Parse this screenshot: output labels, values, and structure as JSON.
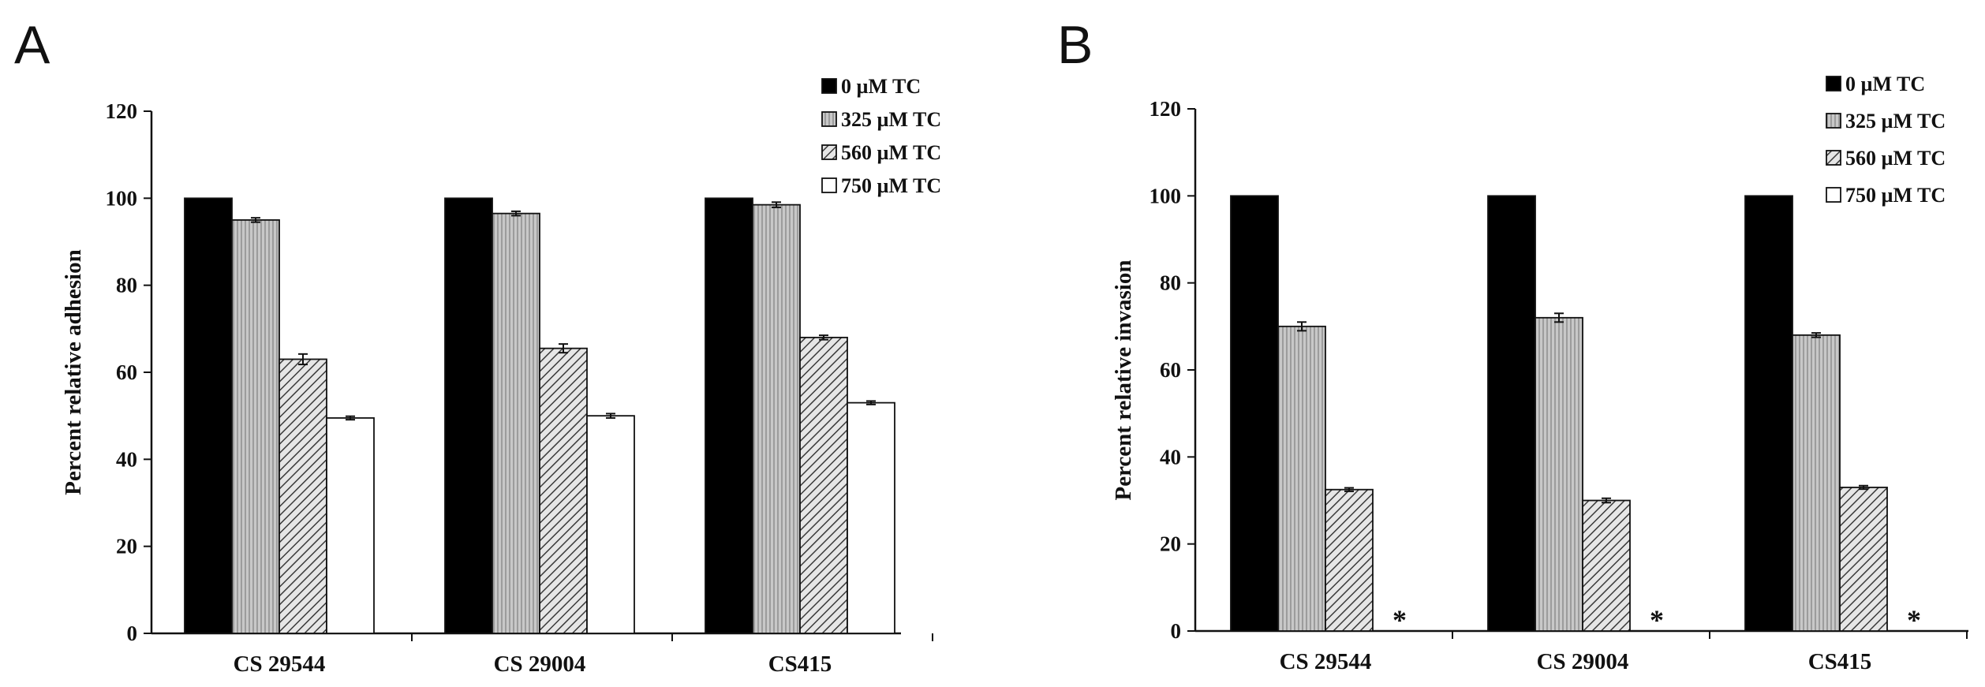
{
  "chart_data": [
    {
      "panel": "A",
      "type": "bar",
      "title": "",
      "xlabel": "",
      "ylabel": "Percent relative adhesion",
      "ylim": [
        0,
        120
      ],
      "yticks": [
        0,
        20,
        40,
        60,
        80,
        100,
        120
      ],
      "categories": [
        "CS 29544",
        "CS 29004",
        "CS415"
      ],
      "legend_position": "top-right",
      "series": [
        {
          "name": "0 µM TC",
          "fill": "solid-black",
          "values": [
            100,
            100,
            100
          ],
          "errors": [
            0,
            0,
            0
          ]
        },
        {
          "name": "325 µM TC",
          "fill": "gray-vertical-lines",
          "values": [
            95,
            96.5,
            98.5
          ],
          "errors": [
            0.5,
            0.5,
            0.6
          ]
        },
        {
          "name": "560 µM TC",
          "fill": "diagonal-hatch",
          "values": [
            63,
            65.5,
            68
          ],
          "errors": [
            1.2,
            1.0,
            0.5
          ]
        },
        {
          "name": "750 µM TC",
          "fill": "white",
          "values": [
            49.5,
            50,
            53
          ],
          "errors": [
            0.4,
            0.5,
            0.4
          ]
        }
      ],
      "annotations": []
    },
    {
      "panel": "B",
      "type": "bar",
      "title": "",
      "xlabel": "",
      "ylabel": "Percent relative invasion",
      "ylim": [
        0,
        120
      ],
      "yticks": [
        0,
        20,
        40,
        60,
        80,
        100,
        120
      ],
      "categories": [
        "CS 29544",
        "CS 29004",
        "CS415"
      ],
      "legend_position": "top-right",
      "series": [
        {
          "name": "0 µM TC",
          "fill": "solid-black",
          "values": [
            100,
            100,
            100
          ],
          "errors": [
            0,
            0,
            0
          ]
        },
        {
          "name": "325 µM TC",
          "fill": "gray-vertical-lines",
          "values": [
            70,
            72,
            68
          ],
          "errors": [
            1.0,
            1.0,
            0.5
          ]
        },
        {
          "name": "560 µM TC",
          "fill": "diagonal-hatch",
          "values": [
            32.5,
            30,
            33
          ],
          "errors": [
            0.4,
            0.5,
            0.4
          ]
        },
        {
          "name": "750 µM TC",
          "fill": "white",
          "values": [
            0,
            0,
            0
          ],
          "errors": [
            0,
            0,
            0
          ]
        }
      ],
      "annotations": [
        {
          "text": "*",
          "series": "750 µM TC",
          "category": "CS 29544"
        },
        {
          "text": "*",
          "series": "750 µM TC",
          "category": "CS 29004"
        },
        {
          "text": "*",
          "series": "750 µM TC",
          "category": "CS415"
        }
      ]
    }
  ],
  "colors": {
    "axis": "#111111",
    "bar_black": "#000000",
    "bar_gray": "#c8c8c8",
    "gray_line": "#8a8a8a",
    "hatch_bg": "#e6e6e6",
    "hatch_line": "#3a3a3a",
    "bar_white": "#ffffff"
  }
}
